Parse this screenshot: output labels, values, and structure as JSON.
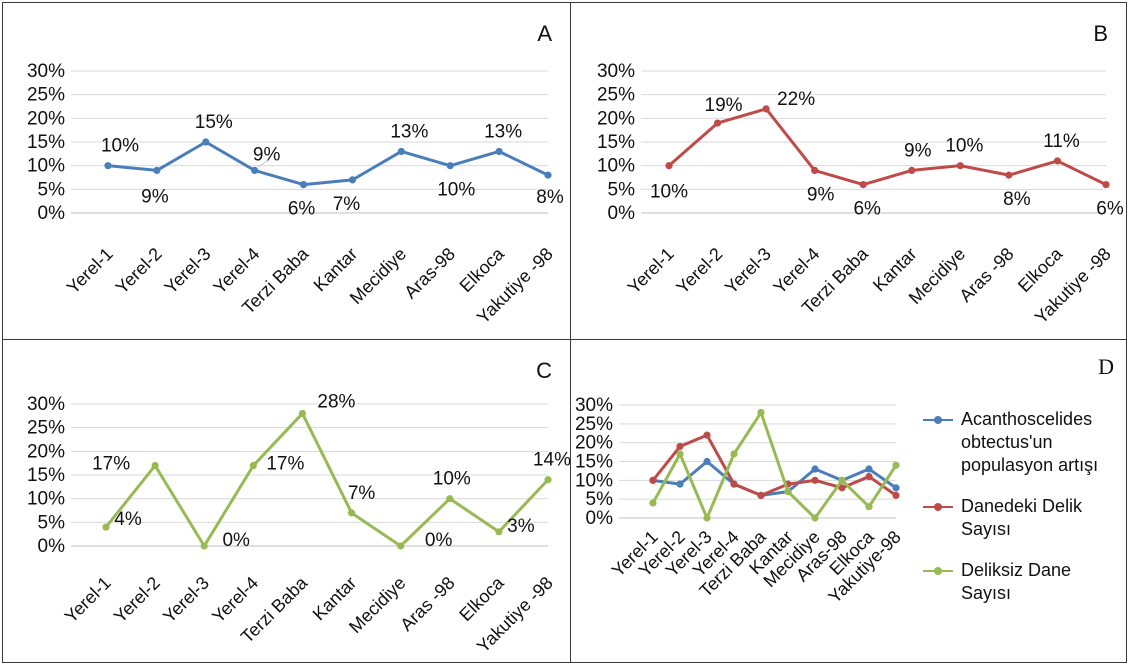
{
  "chart_data": [
    {
      "type": "line",
      "panel_label": "A",
      "categories": [
        "Yerel-1",
        "Yerel-2",
        "Yerel-3",
        "Yerel-4",
        "Terzi Baba",
        "Kantar",
        "Mecidiye",
        "Aras-98",
        "Elkoca",
        "Yakutiye -98"
      ],
      "y_ticks": [
        "0%",
        "5%",
        "10%",
        "15%",
        "20%",
        "25%",
        "30%"
      ],
      "ylim": [
        0,
        30
      ],
      "grid": true,
      "series": [
        {
          "color": "#4a7ebb",
          "values": [
            10,
            9,
            15,
            9,
            6,
            7,
            13,
            10,
            13,
            8
          ],
          "labels": [
            "10%",
            "9%",
            "15%",
            "9%",
            "6%",
            "7%",
            "13%",
            "10%",
            "13%",
            "8%"
          ]
        }
      ]
    },
    {
      "type": "line",
      "panel_label": "B",
      "categories": [
        "Yerel-1",
        "Yerel-2",
        "Yerel-3",
        "Yerel-4",
        "Terzi Baba",
        "Kantar",
        "Mecidiye",
        "Aras -98",
        "Elkoca",
        "Yakutiye -98"
      ],
      "y_ticks": [
        "0%",
        "5%",
        "10%",
        "15%",
        "20%",
        "25%",
        "30%"
      ],
      "ylim": [
        0,
        30
      ],
      "grid": true,
      "series": [
        {
          "color": "#be4b48",
          "values": [
            10,
            19,
            22,
            9,
            6,
            9,
            10,
            8,
            11,
            6
          ],
          "labels": [
            "10%",
            "19%",
            "22%",
            "9%",
            "6%",
            "9%",
            "10%",
            "8%",
            "11%",
            "6%"
          ]
        }
      ]
    },
    {
      "type": "line",
      "panel_label": "C",
      "categories": [
        "Yerel-1",
        "Yerel-2",
        "Yerel-3",
        "Yerel-4",
        "Terzi Baba",
        "Kantar",
        "Mecidiye",
        "Aras -98",
        "Elkoca",
        "Yakutiye -98"
      ],
      "y_ticks": [
        "0%",
        "5%",
        "10%",
        "15%",
        "20%",
        "25%",
        "30%"
      ],
      "ylim": [
        0,
        30
      ],
      "grid": true,
      "series": [
        {
          "color": "#98b954",
          "values": [
            4,
            17,
            0,
            17,
            28,
            7,
            0,
            10,
            3,
            14
          ],
          "labels": [
            "4%",
            "17%",
            "0%",
            "17%",
            "28%",
            "7%",
            "0%",
            "10%",
            "3%",
            "14%"
          ]
        }
      ]
    },
    {
      "type": "line",
      "panel_label": "D",
      "categories": [
        "Yerel-1",
        "Yerel-2",
        "Yerel-3",
        "Yerel-4",
        "Terzi Baba",
        "Kantar",
        "Mecidiye",
        "Aras-98",
        "Elkoca",
        "Yakutiye-98"
      ],
      "y_ticks": [
        "0%",
        "5%",
        "10%",
        "15%",
        "20%",
        "25%",
        "30%"
      ],
      "ylim": [
        0,
        30
      ],
      "grid": true,
      "legend_position": "right",
      "series": [
        {
          "name": "Acanthoscelides obtectus'un populasyon artışı",
          "color": "#4a7ebb",
          "values": [
            10,
            9,
            15,
            9,
            6,
            7,
            13,
            10,
            13,
            8
          ]
        },
        {
          "name": "Danedeki Delik Sayısı",
          "color": "#be4b48",
          "values": [
            10,
            19,
            22,
            9,
            6,
            9,
            10,
            8,
            11,
            6
          ]
        },
        {
          "name": "Deliksiz  Dane Sayısı",
          "color": "#98b954",
          "values": [
            4,
            17,
            0,
            17,
            28,
            7,
            0,
            10,
            3,
            14
          ]
        }
      ]
    }
  ],
  "legend": {
    "items": [
      {
        "label_lines": [
          "Acanthoscelides",
          "obtectus'un",
          "populasyon artışı"
        ],
        "color": "#4a7ebb"
      },
      {
        "label_lines": [
          "Danedeki Delik",
          "Sayısı"
        ],
        "color": "#be4b48"
      },
      {
        "label_lines": [
          "Deliksiz  Dane",
          "Sayısı"
        ],
        "color": "#98b954"
      }
    ]
  }
}
